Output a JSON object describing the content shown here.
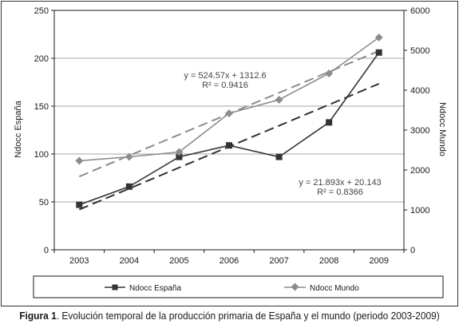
{
  "chart_data": {
    "type": "line",
    "title": "",
    "x": [
      "2003",
      "2004",
      "2005",
      "2006",
      "2007",
      "2008",
      "2009"
    ],
    "ylabel": "Ndocc España",
    "y2label": "Ndocc Mundo",
    "ylim": [
      0,
      250
    ],
    "y2lim": [
      0,
      6000
    ],
    "yticks": [
      "0",
      "50",
      "100",
      "150",
      "200",
      "250"
    ],
    "y2ticks": [
      "0",
      "1000",
      "2000",
      "3000",
      "4000",
      "5000",
      "6000"
    ],
    "grid": true,
    "legend_position": "bottom",
    "series": [
      {
        "name": "Ndocc España",
        "axis": "left",
        "values": [
          47,
          66,
          97,
          109,
          97,
          133,
          206
        ],
        "trend": {
          "slope": 21.893,
          "intercept": 20.143
        },
        "equation": "y = 21.893x + 20.143",
        "r2": "R² = 0.8366"
      },
      {
        "name": "Ndocc Mundo",
        "axis": "right",
        "values": [
          2230,
          2330,
          2450,
          3420,
          3760,
          4420,
          5320
        ],
        "trend": {
          "slope": 524.57,
          "intercept": 1312.6
        },
        "equation": "y = 524.57x + 1312.6",
        "r2": "R² = 0.9416"
      }
    ]
  },
  "caption": {
    "label": "Figura 1",
    "text": ". Evolución temporal de la producción primaria de España y el mundo (periodo 2003-2009)"
  },
  "colors": {
    "espana": "#333333",
    "mundo": "#8c8c8c"
  }
}
